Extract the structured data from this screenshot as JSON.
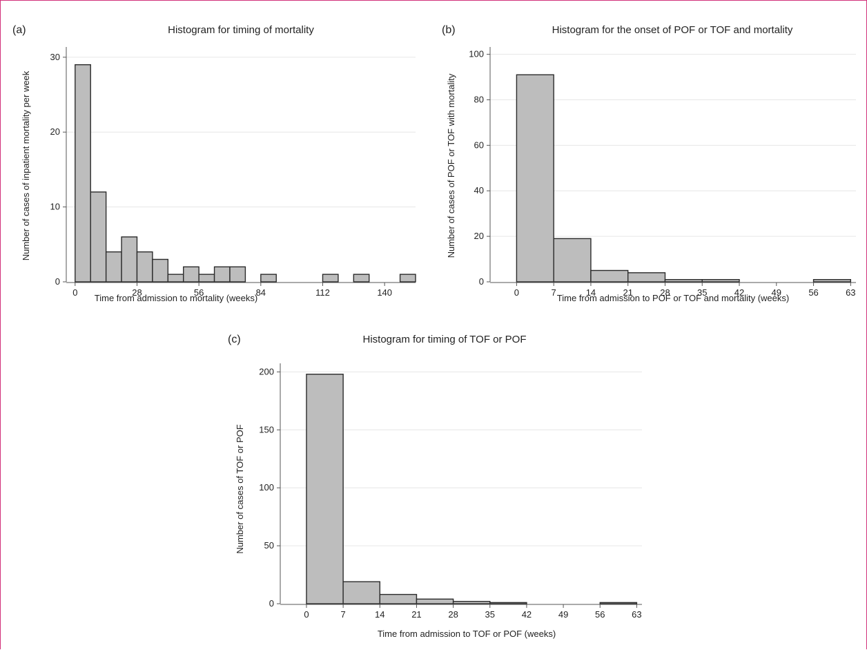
{
  "charts": [
    {
      "panel_label": "(a)",
      "chart_data": {
        "type": "bar",
        "title": "Histogram for timing of mortality",
        "xlabel": "Time from admission to mortality (weeks)",
        "ylabel": "Number of cases of inpatient mortality per week",
        "bin_width": 7,
        "bin_starts": [
          0,
          7,
          14,
          21,
          28,
          35,
          42,
          49,
          56,
          63,
          70,
          77,
          84,
          91,
          98,
          105,
          112,
          119,
          126,
          133,
          140,
          147
        ],
        "values": [
          29,
          12,
          4,
          6,
          4,
          3,
          1,
          2,
          1,
          2,
          2,
          0,
          1,
          0,
          0,
          0,
          1,
          0,
          1,
          0,
          0,
          1
        ],
        "xticks": [
          0,
          28,
          56,
          84,
          112,
          140
        ],
        "yticks": [
          0,
          10,
          20,
          30
        ],
        "xlim": [
          -4,
          154
        ],
        "ylim": [
          0,
          31
        ],
        "grid": true
      }
    },
    {
      "panel_label": "(b)",
      "chart_data": {
        "type": "bar",
        "title": "Histogram for the onset of POF or TOF and mortality",
        "xlabel": "Time from admission to POF or TOF and mortality (weeks)",
        "ylabel": "Number of cases of POF or TOF with mortality",
        "bin_width": 7,
        "bin_starts": [
          0,
          7,
          14,
          21,
          28,
          35,
          42,
          49,
          56
        ],
        "values": [
          91,
          19,
          5,
          4,
          1,
          1,
          0,
          0,
          1
        ],
        "xticks": [
          0,
          7,
          14,
          21,
          28,
          35,
          42,
          49,
          56,
          63
        ],
        "yticks": [
          0,
          20,
          40,
          60,
          80,
          100
        ],
        "xlim": [
          -5,
          64
        ],
        "ylim": [
          0,
          102
        ],
        "grid": true
      }
    },
    {
      "panel_label": "(c)",
      "chart_data": {
        "type": "bar",
        "title": "Histogram for timing of TOF or POF",
        "xlabel": "Time from admission to TOF or POF (weeks)",
        "ylabel": "Number of cases of TOF or POF",
        "bin_width": 7,
        "bin_starts": [
          0,
          7,
          14,
          21,
          28,
          35,
          42,
          49,
          56
        ],
        "values": [
          198,
          19,
          8,
          4,
          2,
          1,
          0,
          0,
          1
        ],
        "xticks": [
          0,
          7,
          14,
          21,
          28,
          35,
          42,
          49,
          56,
          63
        ],
        "yticks": [
          0,
          50,
          100,
          150,
          200
        ],
        "xlim": [
          -5,
          64
        ],
        "ylim": [
          0,
          205
        ],
        "grid": true
      }
    }
  ]
}
